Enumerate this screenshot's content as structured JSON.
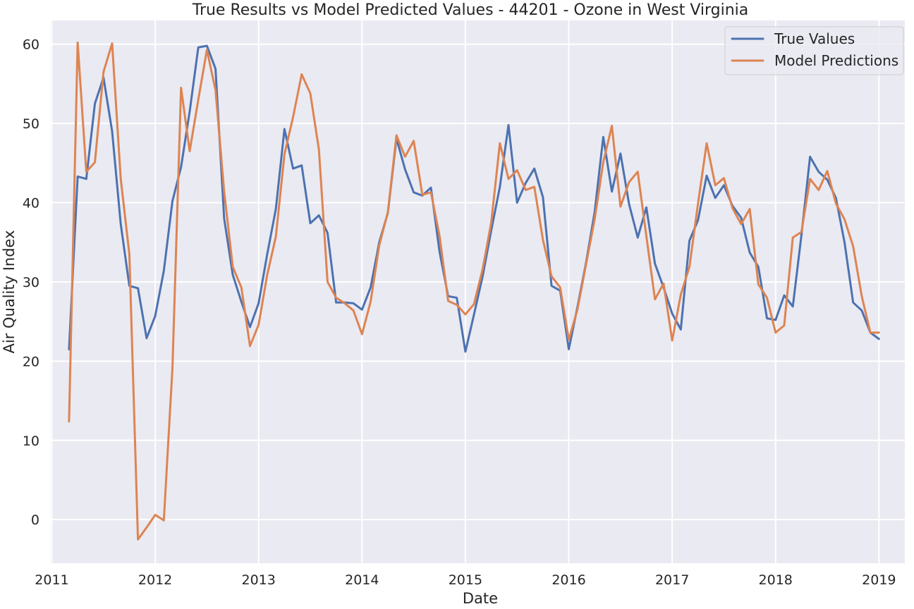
{
  "chart_data": {
    "type": "line",
    "title": "True Results vs Model Predicted Values - 44201 - Ozone in West Virginia",
    "xlabel": "Date",
    "ylabel": "Air Quality Index",
    "xlim": [
      2010.99,
      2019.25
    ],
    "ylim": [
      -5.5,
      63
    ],
    "xticks": [
      2011,
      2012,
      2013,
      2014,
      2015,
      2016,
      2017,
      2018,
      2019
    ],
    "xtick_labels": [
      "2011",
      "2012",
      "2013",
      "2014",
      "2015",
      "2016",
      "2017",
      "2018",
      "2019"
    ],
    "yticks": [
      0,
      10,
      20,
      30,
      40,
      50,
      60
    ],
    "ytick_labels": [
      "0",
      "10",
      "20",
      "30",
      "40",
      "50",
      "60"
    ],
    "grid": true,
    "legend_position": "top-right",
    "x_start": "2011-03",
    "x_end": "2018-12",
    "x_step": "monthly",
    "series": [
      {
        "name": "True Values",
        "color": "#4c72b0",
        "values": [
          21.5,
          43.3,
          43.0,
          52.5,
          55.8,
          49.0,
          37.3,
          29.5,
          29.2,
          22.9,
          25.7,
          31.4,
          40.2,
          44.5,
          51.5,
          59.6,
          59.8,
          56.9,
          38.0,
          30.9,
          27.5,
          24.3,
          27.3,
          33.5,
          39.2,
          49.3,
          44.3,
          44.7,
          37.4,
          38.4,
          36.2,
          27.4,
          27.4,
          27.3,
          26.5,
          29.3,
          35.0,
          38.7,
          48.1,
          44.2,
          41.3,
          40.9,
          41.9,
          33.8,
          28.2,
          28.0,
          21.2,
          25.9,
          30.7,
          36.5,
          42.0,
          49.8,
          40.0,
          42.5,
          44.3,
          40.7,
          29.5,
          28.9,
          21.5,
          26.8,
          32.4,
          38.8,
          48.3,
          41.4,
          46.2,
          39.8,
          35.6,
          39.4,
          32.3,
          29.3,
          26.0,
          24.0,
          35.2,
          37.8,
          43.4,
          40.6,
          42.2,
          39.6,
          38.1,
          33.7,
          31.9,
          25.4,
          25.2,
          28.3,
          26.9,
          35.9,
          45.8,
          43.9,
          42.9,
          40.6,
          35.0,
          27.4,
          26.4,
          23.6,
          22.8
        ]
      },
      {
        "name": "Model Predictions",
        "color": "#dd8452",
        "values": [
          12.4,
          60.2,
          43.9,
          45.1,
          56.5,
          60.1,
          43.0,
          33.5,
          -2.5,
          -1.0,
          0.6,
          -0.1,
          19.1,
          54.5,
          46.5,
          53.0,
          59.3,
          54.2,
          41.4,
          31.9,
          29.3,
          21.9,
          24.6,
          30.9,
          35.7,
          46.1,
          50.8,
          56.2,
          53.8,
          46.7,
          30.0,
          28.0,
          27.3,
          26.4,
          23.4,
          27.5,
          34.6,
          38.8,
          48.5,
          45.8,
          47.8,
          41.0,
          41.3,
          35.8,
          27.6,
          27.1,
          25.9,
          27.2,
          31.6,
          37.5,
          47.5,
          43.0,
          44.1,
          41.6,
          42.0,
          35.3,
          30.7,
          29.3,
          22.7,
          26.5,
          32.2,
          37.9,
          45.1,
          49.7,
          39.5,
          42.6,
          43.9,
          35.8,
          27.8,
          29.8,
          22.6,
          28.4,
          31.9,
          39.9,
          47.5,
          42.2,
          43.1,
          39.3,
          37.3,
          39.2,
          29.7,
          28.0,
          23.6,
          24.5,
          35.6,
          36.3,
          43.0,
          41.6,
          44.0,
          39.9,
          37.9,
          34.5,
          28.2,
          23.6,
          23.6
        ]
      }
    ]
  }
}
